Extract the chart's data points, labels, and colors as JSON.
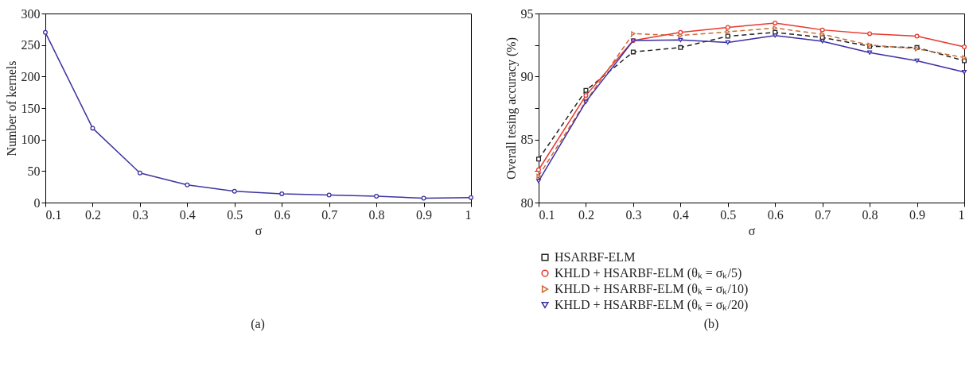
{
  "chart_data": [
    {
      "type": "line",
      "xlabel": "σ",
      "ylabel": "Number of kernels",
      "annotations": [
        "(a)"
      ],
      "x": [
        0.1,
        0.2,
        0.3,
        0.4,
        0.5,
        0.6,
        0.7,
        0.8,
        0.9,
        1
      ],
      "xlim": [
        0.1,
        1
      ],
      "xticks": [
        0.1,
        0.2,
        0.3,
        0.4,
        0.5,
        0.6,
        0.7,
        0.8,
        0.9,
        1
      ],
      "ylim": [
        0,
        300
      ],
      "yticks": [
        0,
        50,
        100,
        150,
        200,
        250,
        300
      ],
      "grid": false,
      "series": [
        {
          "color": "#3d35a0",
          "marker": "circle",
          "line_style": "solid",
          "values": [
            270,
            118,
            47,
            28,
            18,
            14,
            12,
            10,
            7,
            8
          ]
        }
      ]
    },
    {
      "type": "line",
      "xlabel": "σ",
      "ylabel": "Overall tesing accuracy (%)",
      "annotations": [
        "(b)"
      ],
      "x": [
        0.1,
        0.2,
        0.3,
        0.4,
        0.5,
        0.6,
        0.7,
        0.8,
        0.9,
        1
      ],
      "xlim": [
        0.1,
        1
      ],
      "xticks": [
        0.1,
        0.2,
        0.3,
        0.4,
        0.5,
        0.6,
        0.7,
        0.8,
        0.9,
        1
      ],
      "ylim": [
        80,
        95
      ],
      "yticks": [
        80,
        {
          "value": 82.5,
          "label": null
        },
        85,
        {
          "value": 87.5,
          "label": null
        },
        90,
        {
          "value": 92.5,
          "label": null
        },
        95
      ],
      "grid": false,
      "legend": "bottom",
      "series": [
        {
          "name": "HSARBF-ELM",
          "color": "#222222",
          "marker": "square",
          "line_style": "dashed",
          "values": [
            83.45,
            88.9,
            91.95,
            92.3,
            93.2,
            93.5,
            93.1,
            92.4,
            92.3,
            91.25
          ]
        },
        {
          "name": "KHLD + HSARBF-ELM (θₖ = σₖ/5)",
          "color": "#e8392f",
          "marker": "circle",
          "line_style": "solid",
          "values": [
            82.6,
            88.5,
            92.85,
            93.5,
            93.9,
            94.25,
            93.7,
            93.4,
            93.2,
            92.35
          ]
        },
        {
          "name": "KHLD + HSARBF-ELM (θₖ = σₖ/10)",
          "color": "#cd6a33",
          "marker": "triangle-right",
          "line_style": "dashed",
          "values": [
            82.1,
            88.05,
            93.4,
            93.25,
            93.55,
            93.85,
            93.35,
            92.5,
            92.2,
            91.5
          ]
        },
        {
          "name": "KHLD + HSARBF-ELM (θₖ = σₖ/20)",
          "color": "#3b2fa5",
          "marker": "triangle-down",
          "line_style": "solid",
          "values": [
            81.7,
            88.0,
            92.85,
            92.9,
            92.7,
            93.25,
            92.8,
            91.9,
            91.25,
            90.35
          ]
        }
      ]
    }
  ]
}
